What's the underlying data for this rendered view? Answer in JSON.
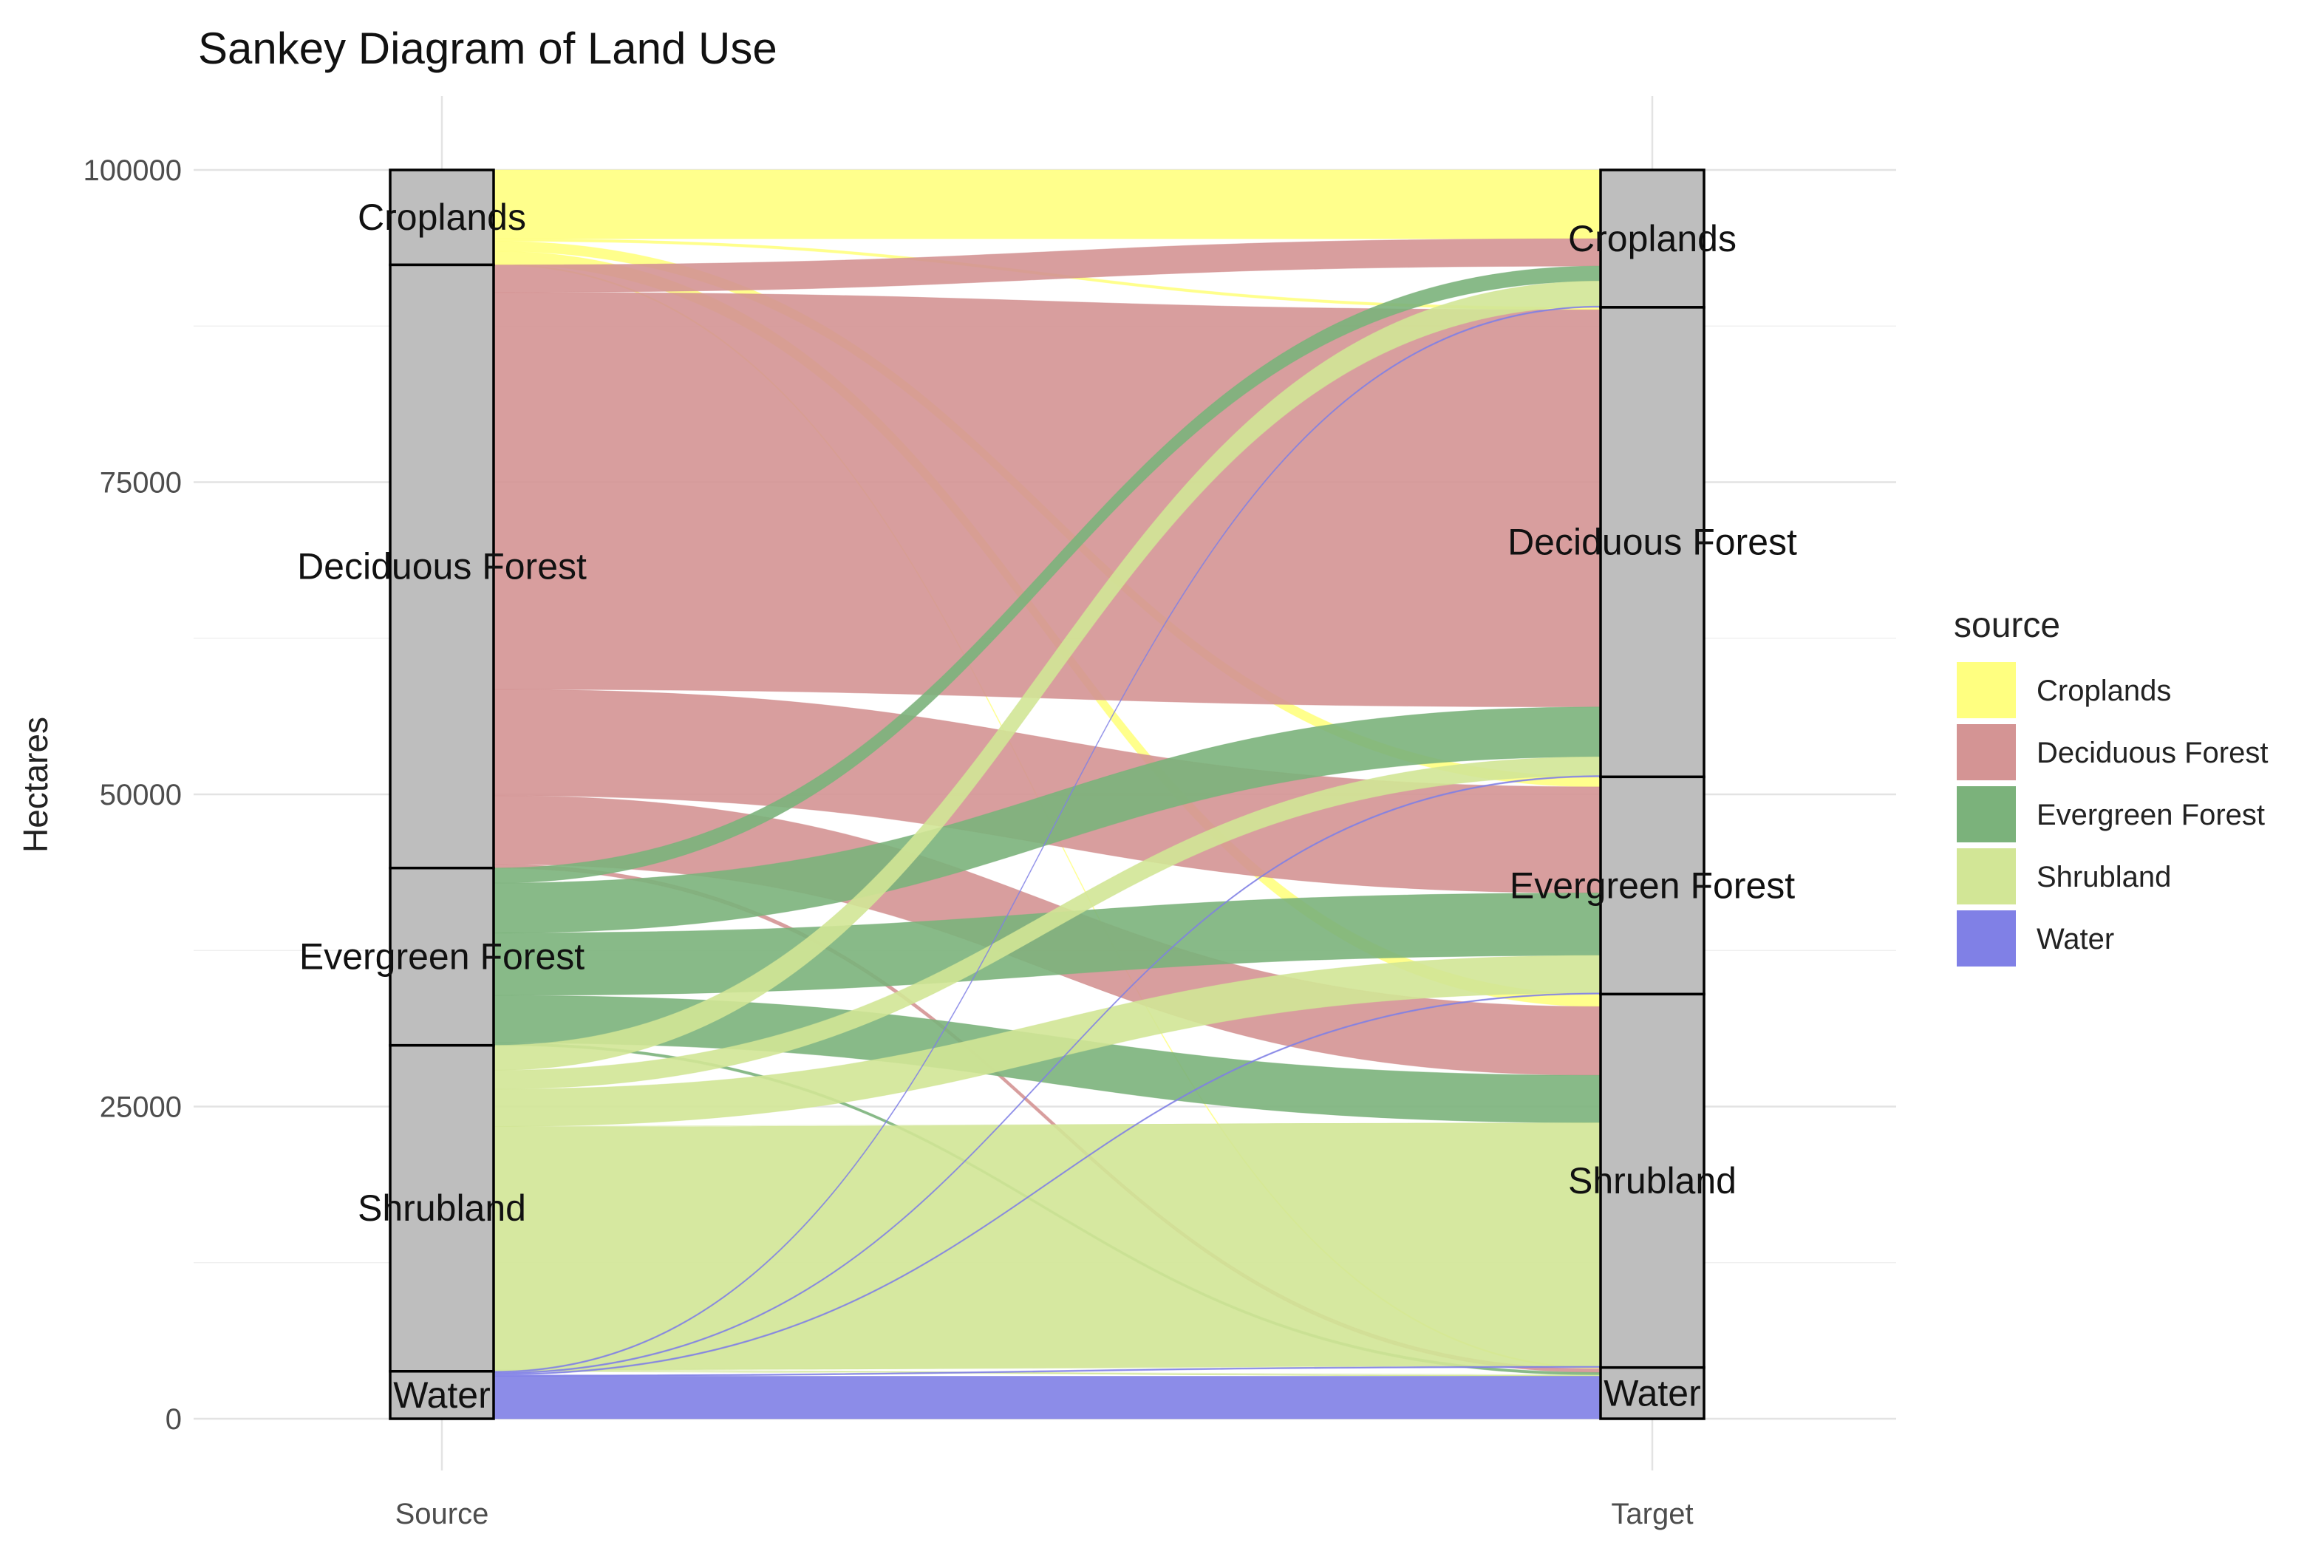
{
  "chart_data": {
    "type": "sankey",
    "title": "Sankey Diagram of Land Use",
    "xlabel": "",
    "ylabel": "Hectares",
    "ylim": [
      0,
      101000
    ],
    "y_ticks": [
      0,
      25000,
      50000,
      75000,
      100000
    ],
    "y_tick_labels": [
      "0",
      "25000",
      "50000",
      "75000",
      "100000"
    ],
    "x_axes": [
      "Source",
      "Target"
    ],
    "legend_title": "source",
    "legend_position": "right",
    "grid": true,
    "categories": [
      "Croplands",
      "Deciduous Forest",
      "Evergreen Forest",
      "Shrubland",
      "Water"
    ],
    "colors": {
      "Croplands": "#ffff80",
      "Deciduous Forest": "#d49494",
      "Evergreen Forest": "#7bb27b",
      "Shrubland": "#d2e696",
      "Water": "#8080e6"
    },
    "flows": [
      {
        "source": "Croplands",
        "target": "Croplands",
        "value": 5500
      },
      {
        "source": "Croplands",
        "target": "Deciduous Forest",
        "value": 200
      },
      {
        "source": "Croplands",
        "target": "Evergreen Forest",
        "value": 800
      },
      {
        "source": "Croplands",
        "target": "Shrubland",
        "value": 1000
      },
      {
        "source": "Croplands",
        "target": "Water",
        "value": 100
      },
      {
        "source": "Deciduous Forest",
        "target": "Croplands",
        "value": 2200
      },
      {
        "source": "Deciduous Forest",
        "target": "Deciduous Forest",
        "value": 31800
      },
      {
        "source": "Deciduous Forest",
        "target": "Evergreen Forest",
        "value": 8500
      },
      {
        "source": "Deciduous Forest",
        "target": "Shrubland",
        "value": 5500
      },
      {
        "source": "Deciduous Forest",
        "target": "Water",
        "value": 300
      },
      {
        "source": "Evergreen Forest",
        "target": "Croplands",
        "value": 1200
      },
      {
        "source": "Evergreen Forest",
        "target": "Deciduous Forest",
        "value": 4000
      },
      {
        "source": "Evergreen Forest",
        "target": "Evergreen Forest",
        "value": 5000
      },
      {
        "source": "Evergreen Forest",
        "target": "Shrubland",
        "value": 3800
      },
      {
        "source": "Evergreen Forest",
        "target": "Water",
        "value": 200
      },
      {
        "source": "Shrubland",
        "target": "Croplands",
        "value": 2000
      },
      {
        "source": "Shrubland",
        "target": "Deciduous Forest",
        "value": 1500
      },
      {
        "source": "Shrubland",
        "target": "Evergreen Forest",
        "value": 3000
      },
      {
        "source": "Shrubland",
        "target": "Shrubland",
        "value": 19500
      },
      {
        "source": "Shrubland",
        "target": "Water",
        "value": 100
      },
      {
        "source": "Water",
        "target": "Croplands",
        "value": 100
      },
      {
        "source": "Water",
        "target": "Deciduous Forest",
        "value": 100
      },
      {
        "source": "Water",
        "target": "Evergreen Forest",
        "value": 100
      },
      {
        "source": "Water",
        "target": "Shrubland",
        "value": 100
      },
      {
        "source": "Water",
        "target": "Water",
        "value": 3400
      }
    ]
  }
}
